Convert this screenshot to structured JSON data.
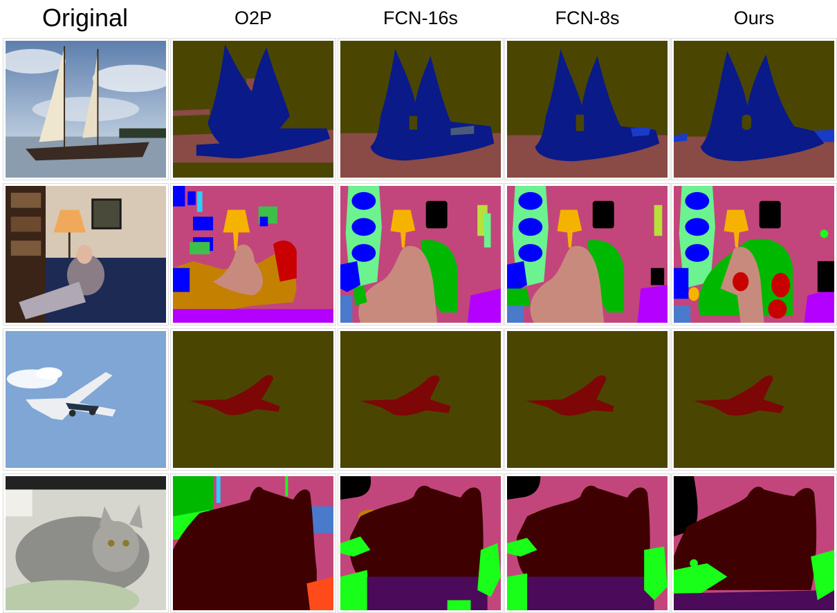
{
  "columns": [
    {
      "key": "original",
      "label": "Original"
    },
    {
      "key": "o2p",
      "label": "O2P"
    },
    {
      "key": "fcn16",
      "label": "FCN-16s"
    },
    {
      "key": "fcn8",
      "label": "FCN-8s"
    },
    {
      "key": "ours",
      "label": "Ours"
    }
  ],
  "rows": [
    {
      "subject": "sailboat"
    },
    {
      "subject": "living-room-person"
    },
    {
      "subject": "airplane"
    },
    {
      "subject": "cat"
    }
  ],
  "palette": {
    "background": "#4a4602",
    "boat": "#0a1a88",
    "water": "#8a4a46",
    "aeroplane": "#7d0606",
    "cat": "#3e0000",
    "wall": "#c2467c",
    "person": "#c98a7e",
    "chair": "#c48000",
    "lamp": "#f5b300",
    "bookshelf": "#6cf28f",
    "sofa": "#00b800",
    "plant": "#1aff1a",
    "bottle": "#0000ff",
    "tv": "#000000",
    "table": "#b400ff",
    "sheep": "#4c0a5a"
  }
}
